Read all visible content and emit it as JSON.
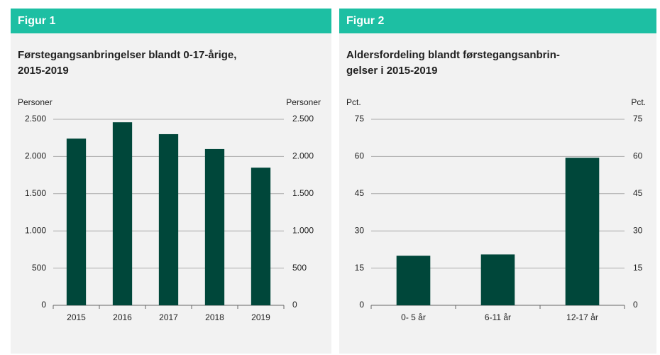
{
  "chart_data": [
    {
      "type": "bar",
      "figure_label": "Figur 1",
      "title": [
        "Førstegangsanbringelser blandt 0-17-årige,",
        "2015-2019"
      ],
      "ylabel": "Personer",
      "y2label": "Personer",
      "categories": [
        "2015",
        "2016",
        "2017",
        "2018",
        "2019"
      ],
      "values": [
        2240,
        2460,
        2300,
        2100,
        1850
      ],
      "color": "#00473a",
      "ylim": [
        0,
        2500
      ],
      "yticks": [
        0,
        500,
        {
          "value": 1000,
          "label": "1.000"
        },
        {
          "value": 1500,
          "label": "1.500"
        },
        {
          "value": 2000,
          "label": "2.000"
        },
        {
          "value": 2500,
          "label": "2.500"
        }
      ],
      "grid": true
    },
    {
      "type": "bar",
      "figure_label": "Figur 2",
      "title": [
        "Aldersfordeling blandt førstegangsanbrin-",
        "gelser i 2015-2019"
      ],
      "ylabel": "Pct.",
      "y2label": "Pct.",
      "categories": [
        "0- 5 år",
        "6-11 år",
        "12-17 år"
      ],
      "values": [
        20,
        20.5,
        59.5
      ],
      "color": "#00473a",
      "ylim": [
        0,
        75
      ],
      "yticks": [
        0,
        15,
        30,
        45,
        60,
        75
      ],
      "grid": true
    }
  ]
}
